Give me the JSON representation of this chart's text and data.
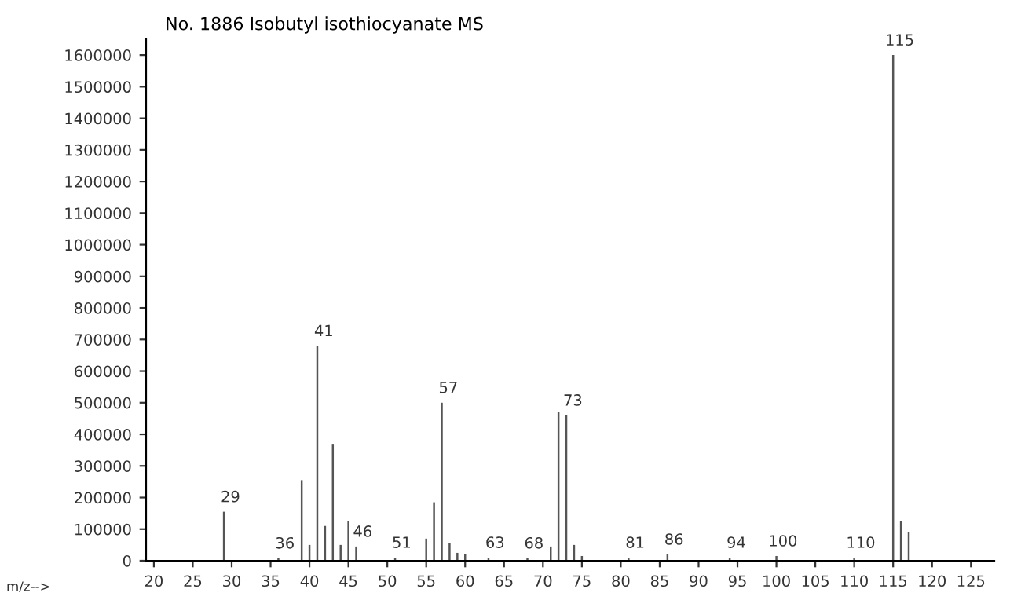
{
  "chart_data": {
    "type": "bar",
    "title": "No. 1886 Isobutyl isothiocyanate MS",
    "xlabel": "m/z-->",
    "x": [
      29,
      36,
      39,
      40,
      41,
      42,
      43,
      44,
      45,
      46,
      51,
      55,
      56,
      57,
      58,
      59,
      60,
      63,
      68,
      71,
      72,
      73,
      74,
      75,
      81,
      86,
      94,
      100,
      110,
      115,
      116,
      117
    ],
    "values": [
      155000,
      8000,
      255000,
      50000,
      680000,
      110000,
      370000,
      50000,
      125000,
      45000,
      10000,
      70000,
      185000,
      500000,
      55000,
      25000,
      20000,
      10000,
      8000,
      45000,
      470000,
      460000,
      50000,
      15000,
      10000,
      20000,
      10000,
      15000,
      10000,
      1600000,
      125000,
      90000
    ],
    "color": "#555555",
    "annotations": [
      {
        "text": "29",
        "x": 29,
        "y": 155000
      },
      {
        "text": "36",
        "x": 36,
        "y": 8000
      },
      {
        "text": "41",
        "x": 41,
        "y": 680000
      },
      {
        "text": "46",
        "x": 46,
        "y": 45000
      },
      {
        "text": "51",
        "x": 51,
        "y": 10000
      },
      {
        "text": "57",
        "x": 57,
        "y": 500000
      },
      {
        "text": "63",
        "x": 63,
        "y": 10000
      },
      {
        "text": "68",
        "x": 68,
        "y": 8000
      },
      {
        "text": "73",
        "x": 73,
        "y": 460000
      },
      {
        "text": "81",
        "x": 81,
        "y": 10000
      },
      {
        "text": "86",
        "x": 86,
        "y": 20000
      },
      {
        "text": "94",
        "x": 94,
        "y": 10000
      },
      {
        "text": "100",
        "x": 100,
        "y": 15000
      },
      {
        "text": "110",
        "x": 110,
        "y": 10000
      },
      {
        "text": "115",
        "x": 115,
        "y": 1600000
      }
    ],
    "xlim": [
      19,
      128
    ],
    "ylim": [
      0,
      1650000
    ],
    "xticks": [
      20,
      25,
      30,
      35,
      40,
      45,
      50,
      55,
      60,
      65,
      70,
      75,
      80,
      85,
      90,
      95,
      100,
      105,
      110,
      115,
      120,
      125
    ],
    "yticks": [
      0,
      100000,
      200000,
      300000,
      400000,
      500000,
      600000,
      700000,
      800000,
      900000,
      1000000,
      1100000,
      1200000,
      1300000,
      1400000,
      1500000,
      1600000
    ],
    "grid": false
  }
}
